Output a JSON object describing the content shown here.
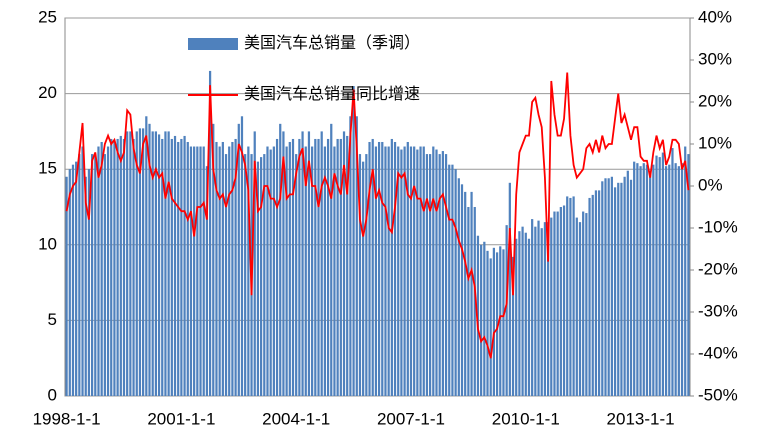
{
  "chart_data": {
    "type": "bar_line",
    "legend": "top",
    "grid": true,
    "categories": [
      "1998-1-1",
      null,
      null,
      null,
      null,
      null,
      null,
      null,
      null,
      null,
      null,
      null,
      null,
      null,
      null,
      null,
      null,
      null,
      null,
      null,
      null,
      null,
      null,
      null,
      null,
      null,
      null,
      null,
      null,
      null,
      null,
      null,
      null,
      null,
      null,
      null,
      "2001-1-1",
      null,
      null,
      null,
      null,
      null,
      null,
      null,
      null,
      null,
      null,
      null,
      null,
      null,
      null,
      null,
      null,
      null,
      null,
      null,
      null,
      null,
      null,
      null,
      null,
      null,
      null,
      null,
      null,
      null,
      null,
      null,
      null,
      null,
      null,
      null,
      "2004-1-1",
      null,
      null,
      null,
      null,
      null,
      null,
      null,
      null,
      null,
      null,
      null,
      null,
      null,
      null,
      null,
      null,
      null,
      null,
      null,
      null,
      null,
      null,
      null,
      null,
      null,
      null,
      null,
      null,
      null,
      null,
      null,
      null,
      null,
      null,
      null,
      "2007-1-1",
      null,
      null,
      null,
      null,
      null,
      null,
      null,
      null,
      null,
      null,
      null,
      null,
      null,
      null,
      null,
      null,
      null,
      null,
      null,
      null,
      null,
      null,
      null,
      null,
      null,
      null,
      null,
      null,
      null,
      null,
      null,
      null,
      null,
      null,
      null,
      "2010-1-1",
      null,
      null,
      null,
      null,
      null,
      null,
      null,
      null,
      null,
      null,
      null,
      null,
      null,
      null,
      null,
      null,
      null,
      null,
      null,
      null,
      null,
      null,
      null,
      null,
      null,
      null,
      null,
      null,
      null,
      null,
      null,
      null,
      null,
      null,
      null,
      "2013-1-1",
      null,
      null,
      null,
      null,
      null,
      null,
      null,
      null,
      null,
      null,
      null,
      null,
      null,
      null,
      null
    ],
    "series": [
      {
        "name": "美国汽车总销量（季调）",
        "color": "#4f81bd",
        "kind": "bar",
        "values": [
          14.5,
          15.0,
          15.3,
          15.5,
          16.0,
          16.5,
          14.5,
          15.0,
          16.0,
          16.0,
          16.5,
          16.8,
          16.0,
          16.5,
          17.0,
          16.8,
          17.0,
          17.2,
          17.0,
          17.5,
          17.5,
          17.0,
          17.5,
          17.7,
          17.7,
          18.5,
          18.0,
          17.5,
          17.5,
          17.3,
          17.0,
          17.5,
          17.5,
          17.0,
          17.2,
          16.8,
          17.0,
          17.2,
          16.8,
          16.5,
          16.5,
          16.5,
          16.5,
          16.5,
          15.2,
          21.5,
          18.0,
          16.8,
          16.5,
          16.8,
          16.0,
          16.5,
          16.8,
          17.0,
          18.0,
          18.5,
          16.0,
          16.5,
          16.0,
          17.5,
          15.5,
          15.8,
          16.0,
          16.5,
          16.3,
          16.5,
          17.0,
          18.0,
          17.5,
          16.5,
          16.8,
          17.0,
          16.0,
          17.0,
          17.5,
          16.5,
          17.5,
          16.5,
          17.0,
          17.0,
          17.5,
          16.5,
          17.0,
          18.0,
          16.5,
          17.0,
          17.0,
          17.5,
          17.2,
          18.5,
          20.5,
          18.5,
          16.0,
          15.5,
          16.0,
          16.8,
          17.0,
          16.5,
          16.8,
          16.8,
          16.5,
          16.5,
          17.0,
          16.8,
          16.5,
          16.3,
          16.5,
          16.8,
          16.5,
          16.5,
          16.3,
          16.5,
          16.5,
          16.0,
          16.0,
          16.5,
          16.3,
          16.0,
          16.2,
          16.0,
          15.3,
          15.3,
          15.0,
          14.4,
          14.0,
          13.5,
          12.5,
          13.5,
          12.5,
          10.6,
          10.0,
          10.2,
          9.6,
          9.1,
          9.8,
          9.5,
          9.9,
          9.7,
          11.3,
          14.1,
          9.2,
          10.4,
          10.9,
          11.2,
          10.8,
          10.4,
          11.7,
          11.2,
          11.6,
          11.1,
          11.5,
          11.5,
          11.8,
          12.2,
          12.2,
          12.5,
          12.6,
          13.2,
          13.1,
          13.2,
          11.8,
          11.5,
          12.2,
          12.1,
          13.1,
          13.3,
          13.6,
          13.6,
          14.2,
          14.4,
          14.4,
          14.5,
          13.8,
          14.1,
          14.1,
          14.5,
          14.9,
          14.3,
          15.5,
          15.4,
          15.2,
          15.4,
          15.3,
          14.9,
          15.3,
          15.9,
          15.8,
          16.1,
          15.2,
          15.3,
          16.4,
          15.4,
          15.2,
          15.4,
          16.5,
          16.0
        ]
      },
      {
        "name": "美国汽车总销量同比增速",
        "color": "#ff0000",
        "kind": "line",
        "axis": "y2",
        "values": [
          -6,
          -2,
          0,
          1,
          8,
          15,
          -4,
          -8,
          6,
          8,
          2,
          5,
          10,
          12,
          10,
          11,
          8,
          6,
          8,
          18,
          17,
          9,
          5,
          3,
          10,
          12,
          5,
          2,
          4,
          2,
          3,
          -3,
          1,
          -3,
          -4,
          -5,
          -6,
          -6,
          -8,
          -6,
          -12,
          -5,
          -5,
          -4,
          -8,
          24,
          4,
          -1,
          -3,
          -2,
          -5,
          -2,
          -1,
          2,
          10,
          8,
          5,
          -1,
          -26,
          6,
          -6,
          -5,
          0,
          0,
          -3,
          -3,
          -5,
          -3,
          7,
          -3,
          -2,
          -2,
          3,
          7,
          9,
          0,
          6,
          0,
          0,
          -5,
          0,
          2,
          0,
          -3,
          3,
          0,
          -2,
          5,
          -2,
          12,
          23,
          9,
          -8,
          -12,
          -8,
          -1,
          4,
          -3,
          -1,
          -4,
          -5,
          -10,
          -11,
          -5,
          3,
          2,
          3,
          -2,
          -3,
          0,
          -3,
          -3,
          -6,
          -3,
          -6,
          -3,
          -6,
          -3,
          -2,
          -5,
          -8,
          -8,
          -10,
          -13,
          -15,
          -18,
          -22,
          -20,
          -24,
          -34,
          -37,
          -36,
          -38,
          -41,
          -35,
          -34,
          -31,
          -31,
          -28,
          -10,
          -26,
          -2,
          8,
          10,
          12,
          12,
          20,
          21,
          17,
          14,
          2,
          -18,
          25,
          17,
          12,
          12,
          16,
          27,
          12,
          5,
          2,
          3,
          4,
          9,
          10,
          8,
          11,
          8,
          12,
          9,
          10,
          10,
          16,
          22,
          15,
          17,
          14,
          11,
          14,
          14,
          7,
          6,
          6,
          2,
          8,
          12,
          9,
          11,
          5,
          7,
          11,
          11,
          10,
          4,
          6,
          -1
        ]
      }
    ],
    "ylim": [
      0,
      25
    ],
    "yticks": [
      0,
      5,
      10,
      15,
      20,
      25
    ],
    "y2lim": [
      -50,
      40
    ],
    "y2ticks": [
      {
        "value": -50,
        "label": "-50%"
      },
      {
        "value": -40,
        "label": "-40%"
      },
      {
        "value": -30,
        "label": "-30%"
      },
      {
        "value": -20,
        "label": "-20%"
      },
      {
        "value": -10,
        "label": "-10%"
      },
      {
        "value": 0,
        "label": "0%"
      },
      {
        "value": 10,
        "label": "10%"
      },
      {
        "value": 20,
        "label": "20%"
      },
      {
        "value": 30,
        "label": "30%"
      },
      {
        "value": 40,
        "label": "40%"
      }
    ]
  }
}
